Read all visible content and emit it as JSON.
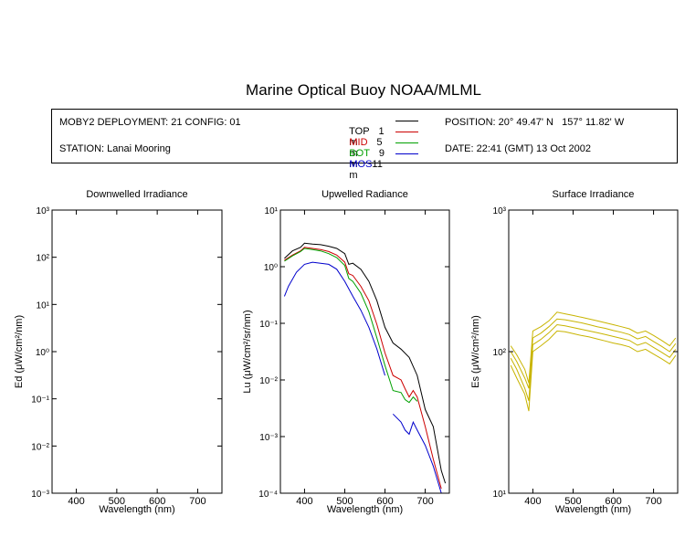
{
  "title": "Marine Optical Buoy NOAA/MLML",
  "info": {
    "deployment": "MOBY2 DEPLOYMENT: 21 CONFIG: 01",
    "station": "STATION: Lanai Mooring",
    "position": "POSITION: 20° 49.47' N   157° 11.82' W",
    "date": "DATE: 22:41 (GMT) 13 Oct 2002",
    "legend": [
      {
        "name": "TOP",
        "depth": "1",
        "unit": "m",
        "color": "#000000"
      },
      {
        "name": "MID",
        "depth": "5",
        "unit": "m",
        "color": "#cc0000"
      },
      {
        "name": "BOT",
        "depth": "9",
        "unit": "m",
        "color": "#00a000"
      },
      {
        "name": "MOS",
        "depth": "11",
        "unit": "m",
        "color": "#0000cc"
      }
    ]
  },
  "chart_data": [
    {
      "type": "line",
      "title": "Downwelled Irradiance",
      "xlabel": "Wavelength (nm)",
      "ylabel": "Ed  (μW/cm²/nm)",
      "xlim": [
        340,
        760
      ],
      "ylim": [
        0.001,
        1000
      ],
      "yscale": "log",
      "xticks": [
        "400",
        "500",
        "600",
        "700"
      ],
      "yticks": [
        "10⁻³",
        "10⁻²",
        "10⁻¹",
        "10⁰",
        "10¹",
        "10²",
        "10³"
      ],
      "series": []
    },
    {
      "type": "line",
      "title": "Upwelled Radiance",
      "xlabel": "Wavelength (nm)",
      "ylabel": "Lu  (μW/cm²/sr/nm)",
      "xlim": [
        340,
        760
      ],
      "ylim": [
        0.0001,
        10
      ],
      "yscale": "log",
      "xticks": [
        "400",
        "500",
        "600",
        "700"
      ],
      "yticks": [
        "10⁻⁴",
        "10⁻³",
        "10⁻²",
        "10⁻¹",
        "10⁰",
        "10¹"
      ],
      "series": [
        {
          "name": "TOP",
          "color": "#000000",
          "x": [
            350,
            370,
            390,
            400,
            420,
            440,
            460,
            480,
            500,
            510,
            520,
            540,
            560,
            580,
            600,
            620,
            640,
            660,
            680,
            700,
            720,
            740,
            750
          ],
          "y": [
            1.4,
            1.9,
            2.2,
            2.6,
            2.5,
            2.45,
            2.3,
            2.1,
            1.7,
            1.1,
            1.15,
            0.9,
            0.55,
            0.25,
            0.085,
            0.045,
            0.035,
            0.025,
            0.012,
            0.003,
            0.0015,
            0.00025,
            0.00015
          ]
        },
        {
          "name": "MID",
          "color": "#cc0000",
          "x": [
            350,
            370,
            390,
            400,
            420,
            440,
            460,
            480,
            500,
            510,
            520,
            540,
            560,
            580,
            600,
            620,
            640,
            650,
            660,
            670,
            680,
            700,
            720,
            740
          ],
          "y": [
            1.3,
            1.6,
            1.9,
            2.2,
            2.1,
            2.0,
            1.85,
            1.6,
            1.2,
            0.75,
            0.7,
            0.45,
            0.25,
            0.095,
            0.03,
            0.012,
            0.01,
            0.007,
            0.005,
            0.0065,
            0.005,
            0.0015,
            0.0004,
            0.00012
          ]
        },
        {
          "name": "BOT",
          "color": "#00a000",
          "x": [
            350,
            370,
            390,
            400,
            420,
            440,
            460,
            480,
            500,
            510,
            520,
            540,
            560,
            580,
            600,
            620,
            640,
            650,
            660,
            670,
            680
          ],
          "y": [
            1.25,
            1.55,
            1.85,
            2.1,
            2.0,
            1.9,
            1.7,
            1.45,
            1.05,
            0.62,
            0.55,
            0.34,
            0.16,
            0.055,
            0.018,
            0.0065,
            0.006,
            0.0045,
            0.004,
            0.005,
            0.0042
          ]
        },
        {
          "name": "MOS",
          "color": "#0000cc",
          "x": [
            350,
            360,
            380,
            400,
            420,
            440,
            460,
            480,
            500,
            520,
            540,
            560,
            580,
            600
          ],
          "y": [
            0.3,
            0.45,
            0.8,
            1.1,
            1.2,
            1.15,
            1.1,
            0.9,
            0.55,
            0.3,
            0.17,
            0.085,
            0.035,
            0.012
          ]
        },
        {
          "name": "MOS",
          "color": "#0000cc",
          "x": [
            620,
            640,
            650,
            660,
            670,
            680,
            700,
            720,
            740
          ],
          "y": [
            0.0025,
            0.0018,
            0.0013,
            0.0011,
            0.0018,
            0.0013,
            0.0007,
            0.0003,
            0.0001
          ]
        }
      ]
    },
    {
      "type": "line",
      "title": "Surface Irradiance",
      "xlabel": "Wavelength (nm)",
      "ylabel": "Es  (μW/cm²/nm)",
      "xlim": [
        340,
        760
      ],
      "ylim": [
        10,
        1000
      ],
      "yscale": "log",
      "xticks": [
        "400",
        "500",
        "600",
        "700"
      ],
      "yticks": [
        "10¹",
        "10²",
        "10³"
      ],
      "series": [
        {
          "name": "",
          "color": "#c8b400",
          "x": [
            345,
            360,
            380,
            390,
            400,
            420,
            440,
            460,
            480,
            500,
            520,
            540,
            560,
            580,
            600,
            620,
            640,
            660,
            680,
            700,
            720,
            740,
            755
          ],
          "y": [
            110,
            95,
            75,
            60,
            140,
            150,
            165,
            190,
            185,
            180,
            175,
            170,
            165,
            160,
            155,
            150,
            145,
            135,
            140,
            130,
            120,
            110,
            125
          ]
        },
        {
          "name": "",
          "color": "#c8b400",
          "x": [
            345,
            360,
            380,
            390,
            400,
            420,
            440,
            460,
            480,
            500,
            520,
            540,
            560,
            580,
            600,
            620,
            640,
            660,
            680,
            700,
            720,
            740,
            755
          ],
          "y": [
            100,
            85,
            65,
            55,
            125,
            135,
            150,
            170,
            168,
            164,
            160,
            155,
            150,
            146,
            141,
            137,
            132,
            123,
            128,
            118,
            109,
            100,
            114
          ]
        },
        {
          "name": "",
          "color": "#c8b400",
          "x": [
            345,
            360,
            380,
            390,
            400,
            420,
            440,
            460,
            480,
            500,
            520,
            540,
            560,
            580,
            600,
            620,
            640,
            660,
            680,
            700,
            720,
            740,
            755
          ],
          "y": [
            90,
            75,
            55,
            45,
            112,
            122,
            136,
            155,
            152,
            148,
            144,
            140,
            136,
            132,
            128,
            124,
            120,
            111,
            116,
            107,
            99,
            91,
            104
          ]
        },
        {
          "name": "",
          "color": "#c8b400",
          "x": [
            345,
            360,
            380,
            390,
            400,
            420,
            440,
            460,
            480,
            500,
            520,
            540,
            560,
            580,
            600,
            620,
            640,
            660,
            680,
            700,
            720,
            740,
            755
          ],
          "y": [
            80,
            65,
            50,
            38,
            100,
            110,
            122,
            140,
            138,
            134,
            130,
            127,
            123,
            119,
            115,
            112,
            108,
            100,
            104,
            96,
            89,
            82,
            94
          ]
        }
      ]
    }
  ]
}
